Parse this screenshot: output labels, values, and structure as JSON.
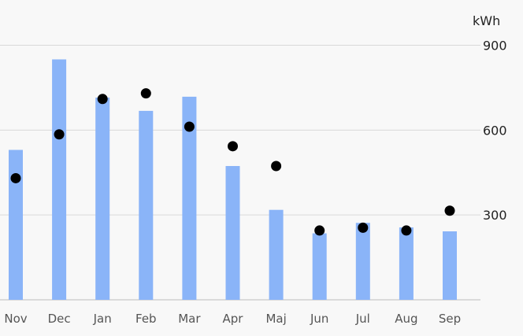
{
  "chart_data": {
    "type": "bar",
    "unit": "kWh",
    "categories": [
      "Nov",
      "Dec",
      "Jan",
      "Feb",
      "Mar",
      "Apr",
      "Maj",
      "Jun",
      "Jul",
      "Aug",
      "Sep"
    ],
    "series": [
      {
        "kind": "bar",
        "values": [
          530,
          850,
          715,
          668,
          718,
          473,
          318,
          235,
          272,
          256,
          242
        ],
        "color": "#8ab4f8"
      },
      {
        "kind": "point",
        "values": [
          430,
          585,
          710,
          730,
          612,
          543,
          473,
          245,
          255,
          245,
          315
        ],
        "color": "#000000"
      }
    ],
    "y_ticks": [
      300,
      600,
      900
    ],
    "y_tick_labels": [
      "300",
      "600",
      "900"
    ],
    "ylim": [
      0,
      900
    ],
    "grid": true,
    "gridline_color": "#d9d9d9",
    "axis_line_color": "#bdbdbd",
    "legend": "none"
  }
}
